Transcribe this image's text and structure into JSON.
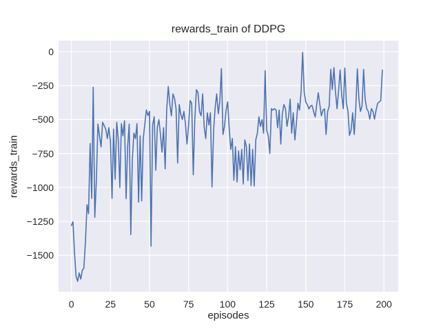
{
  "chart_data": {
    "type": "line",
    "title": "rewards_train of DDPG",
    "xlabel": "episodes",
    "ylabel": "rewards_train",
    "legend": "none",
    "grid": true,
    "plot_bg_color": "#eaeaf2",
    "grid_color": "#ffffff",
    "fig_bg_color": "#ffffff",
    "text_color": "#262626",
    "x_ticks": [
      0,
      25,
      50,
      75,
      100,
      125,
      150,
      175,
      200
    ],
    "y_ticks": [
      0,
      -250,
      -500,
      -750,
      -1000,
      -1250,
      -1500
    ],
    "xlim": [
      -8.2,
      209.2
    ],
    "ylim": [
      -1768,
      81
    ],
    "series": [
      {
        "name": "rewards_train",
        "color": "#4c72b0",
        "x_start": 0,
        "values": [
          -1280,
          -1253,
          -1480,
          -1655,
          -1692,
          -1630,
          -1675,
          -1610,
          -1595,
          -1400,
          -1127,
          -1193,
          -676,
          -1080,
          -262,
          -1220,
          -940,
          -533,
          -620,
          -701,
          -520,
          -545,
          -570,
          -640,
          -560,
          -660,
          -1080,
          -570,
          -940,
          -520,
          -640,
          -1000,
          -530,
          -620,
          -510,
          -1082,
          -700,
          -533,
          -1347,
          -800,
          -600,
          -640,
          -530,
          -1108,
          -620,
          -1100,
          -640,
          -533,
          -430,
          -470,
          -440,
          -1432,
          -540,
          -480,
          -873,
          -560,
          -500,
          -610,
          -740,
          -560,
          -863,
          -430,
          -256,
          -390,
          -472,
          -311,
          -345,
          -420,
          -820,
          -390,
          -460,
          -500,
          -440,
          -530,
          -680,
          -540,
          -360,
          -380,
          -907,
          -500,
          -280,
          -300,
          -440,
          -472,
          -311,
          -560,
          -640,
          -450,
          -540,
          -450,
          -996,
          -580,
          -416,
          -311,
          -457,
          -370,
          -125,
          -610,
          -550,
          -430,
          -370,
          -560,
          -720,
          -640,
          -947,
          -700,
          -960,
          -730,
          -870,
          -720,
          -975,
          -650,
          -700,
          -950,
          -680,
          -986,
          -720,
          -990,
          -650,
          -600,
          -480,
          -550,
          -500,
          -600,
          -140,
          -580,
          -620,
          -750,
          -420,
          -430,
          -420,
          -430,
          -560,
          -430,
          -680,
          -460,
          -390,
          -420,
          -550,
          -480,
          -350,
          -600,
          -450,
          -650,
          -530,
          -380,
          -430,
          -300,
          -5,
          -300,
          -371,
          -390,
          -422,
          -400,
          -396,
          -440,
          -481,
          -390,
          -303,
          -390,
          -472,
          -430,
          -422,
          -610,
          -440,
          -400,
          -130,
          -280,
          -117,
          -290,
          -420,
          -287,
          -135,
          -320,
          -420,
          -120,
          -380,
          -440,
          -616,
          -580,
          -450,
          -610,
          -420,
          -127,
          -350,
          -440,
          -400,
          -131,
          -350,
          -420,
          -440,
          -497,
          -420,
          -440,
          -497,
          -430,
          -380,
          -370,
          -360,
          -135
        ]
      }
    ]
  }
}
